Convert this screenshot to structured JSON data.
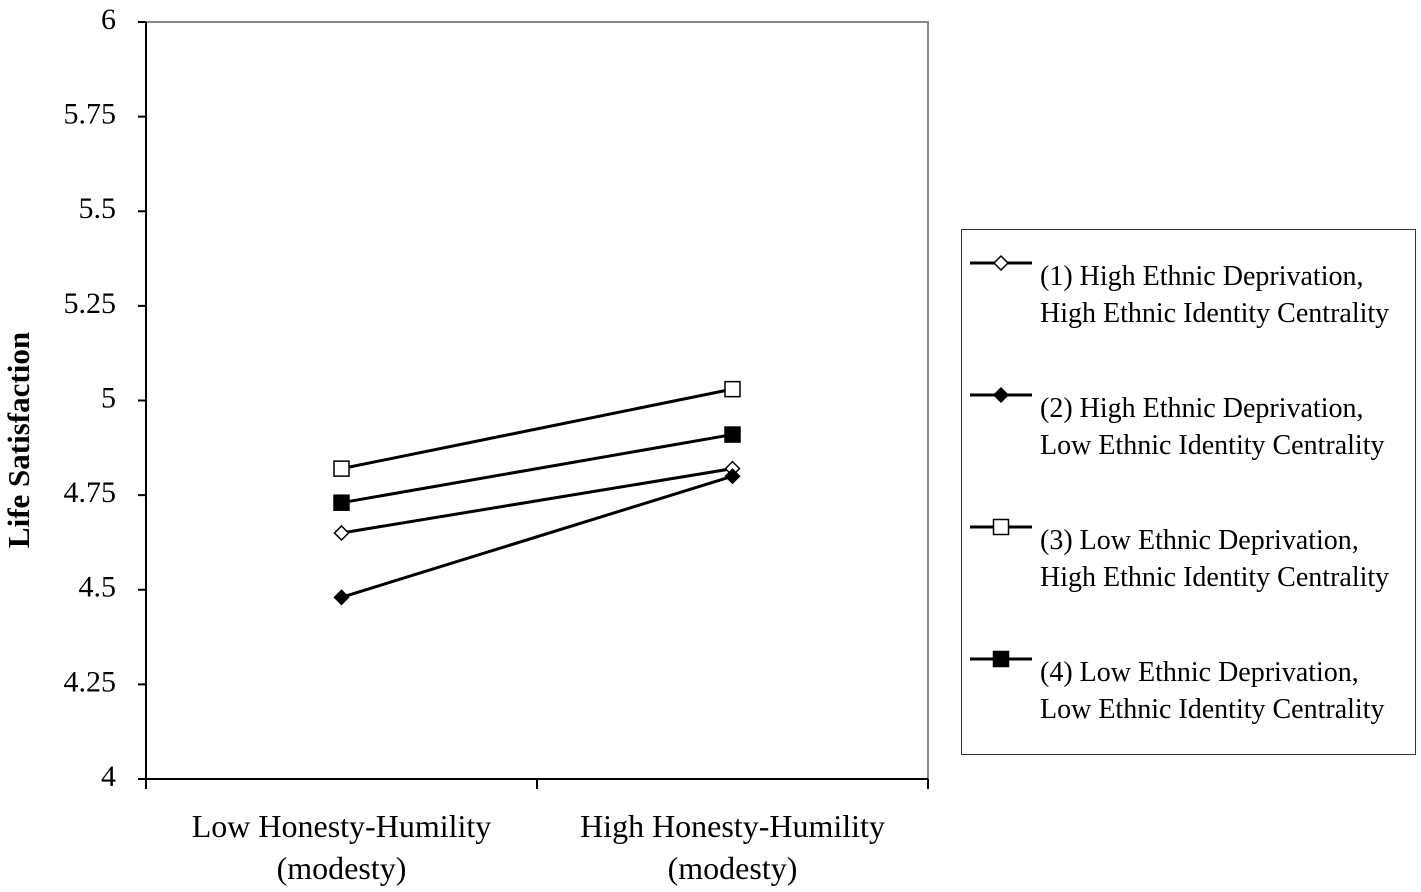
{
  "chart_data": {
    "type": "line",
    "y_label": "Life Satisfaction",
    "categories": [
      "Low Honesty-Humility (modesty)",
      "High Honesty-Humility (modesty)"
    ],
    "series": [
      {
        "name": "(1) High Ethnic Deprivation, High Ethnic Identity Centrality",
        "color": "#000000",
        "marker": "diamond",
        "marker_fill": "#ffffff",
        "values": [
          4.65,
          4.82
        ]
      },
      {
        "name": "(2) High Ethnic Deprivation, Low Ethnic Identity Centrality",
        "color": "#000000",
        "marker": "diamond",
        "marker_fill": "#000000",
        "values": [
          4.48,
          4.8
        ]
      },
      {
        "name": "(3) Low Ethnic Deprivation, High Ethnic Identity Centrality",
        "color": "#000000",
        "marker": "square",
        "marker_fill": "#ffffff",
        "values": [
          4.82,
          5.03
        ]
      },
      {
        "name": "(4) Low Ethnic Deprivation, Low Ethnic Identity Centrality",
        "color": "#000000",
        "marker": "square",
        "marker_fill": "#000000",
        "values": [
          4.73,
          4.91
        ]
      }
    ],
    "ylim": [
      4,
      6
    ],
    "yticks": [
      4,
      4.25,
      4.5,
      4.75,
      5,
      5.25,
      5.5,
      5.75,
      6
    ],
    "grid": false,
    "legend": "right"
  }
}
